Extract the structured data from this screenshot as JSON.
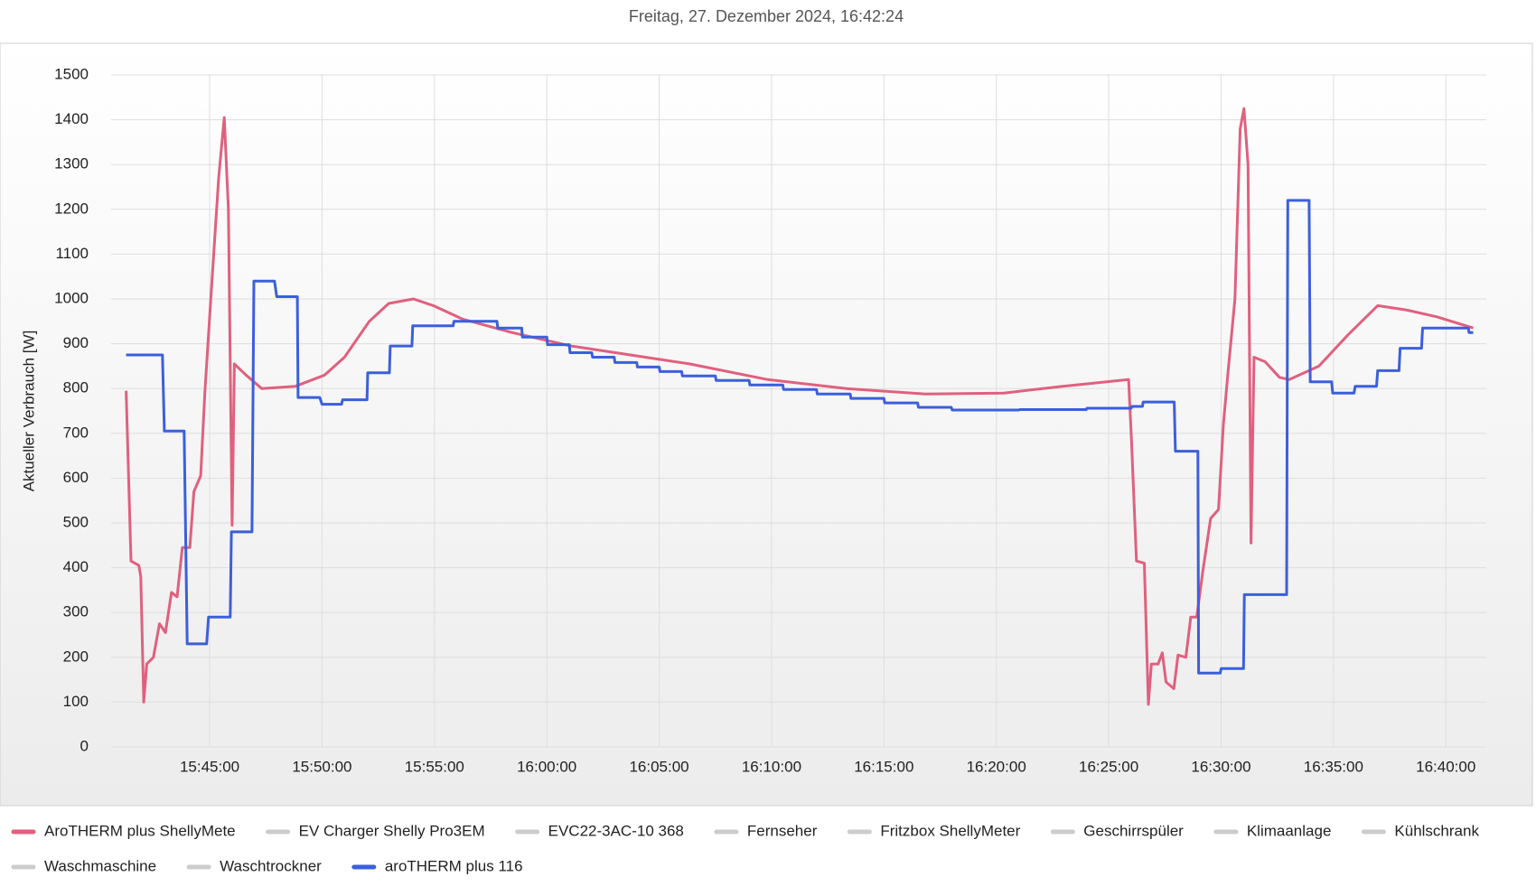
{
  "chart_data": {
    "type": "line",
    "title": "Freitag, 27. Dezember 2024, 16:42:24",
    "y_label": "Aktueller Verbrauch [W]",
    "ylim": [
      0,
      1500
    ],
    "yticks": [
      0,
      100,
      200,
      300,
      400,
      500,
      600,
      700,
      800,
      900,
      1000,
      1100,
      1200,
      1300,
      1400,
      1500
    ],
    "xlim": [
      "15:40:37",
      "16:41:48"
    ],
    "xticks": [
      "15:45:00",
      "15:50:00",
      "15:55:00",
      "16:00:00",
      "16:05:00",
      "16:10:00",
      "16:15:00",
      "16:20:00",
      "16:25:00",
      "16:30:00",
      "16:35:00",
      "16:40:00"
    ],
    "grid": true,
    "series": [
      {
        "name": "AroTHERM plus ShellyMete",
        "color": "#e0607e",
        "x": [
          "15:41:17",
          "15:41:30",
          "15:41:51",
          "15:41:56",
          "15:42:04",
          "15:42:12",
          "15:42:30",
          "15:42:46",
          "15:43:02",
          "15:43:18",
          "15:43:33",
          "15:43:47",
          "15:44:07",
          "15:44:18",
          "15:44:36",
          "15:44:47",
          "15:45:03",
          "15:45:24",
          "15:45:39",
          "15:45:50",
          "15:46:00",
          "15:46:06",
          "15:46:37",
          "15:47:19",
          "15:48:49",
          "15:50:07",
          "15:51:00",
          "15:52:06",
          "15:52:58",
          "15:54:04",
          "15:54:57",
          "15:56:15",
          "15:58:27",
          "16:01:05",
          "16:03:43",
          "16:06:21",
          "16:09:50",
          "16:13:20",
          "16:16:50",
          "16:20:20",
          "16:22:57",
          "16:25:53",
          "16:26:01",
          "16:26:14",
          "16:26:35",
          "16:26:46",
          "16:26:54",
          "16:27:12",
          "16:27:23",
          "16:27:33",
          "16:27:54",
          "16:28:05",
          "16:28:26",
          "16:28:39",
          "16:28:55",
          "16:29:11",
          "16:29:32",
          "16:29:53",
          "16:30:06",
          "16:30:19",
          "16:30:37",
          "16:30:51",
          "16:31:01",
          "16:31:12",
          "16:31:20",
          "16:31:28",
          "16:31:57",
          "16:32:36",
          "16:33:02",
          "16:34:21",
          "16:35:39",
          "16:36:58",
          "16:38:17",
          "16:39:36",
          "16:41:13"
        ],
        "values": [
          795,
          415,
          405,
          380,
          100,
          185,
          200,
          275,
          255,
          345,
          335,
          445,
          445,
          570,
          605,
          790,
          1000,
          1270,
          1405,
          1200,
          495,
          855,
          830,
          800,
          805,
          830,
          870,
          950,
          990,
          1000,
          985,
          955,
          925,
          895,
          875,
          855,
          820,
          800,
          788,
          790,
          805,
          820,
          680,
          415,
          410,
          95,
          185,
          185,
          210,
          145,
          130,
          205,
          200,
          290,
          290,
          390,
          510,
          530,
          720,
          840,
          1000,
          1380,
          1425,
          1300,
          455,
          870,
          860,
          825,
          820,
          850,
          920,
          985,
          975,
          960,
          935
        ]
      },
      {
        "name": "EV Charger Shelly Pro3EM",
        "color": "#cccccc",
        "hidden": true,
        "x": [],
        "values": []
      },
      {
        "name": "EVC22-3AC-10 368",
        "color": "#cccccc",
        "hidden": true,
        "x": [],
        "values": []
      },
      {
        "name": "Fernseher",
        "color": "#cccccc",
        "hidden": true,
        "x": [],
        "values": []
      },
      {
        "name": "Fritzbox ShellyMeter",
        "color": "#cccccc",
        "hidden": true,
        "x": [],
        "values": []
      },
      {
        "name": "Geschirrspüler",
        "color": "#cccccc",
        "hidden": true,
        "x": [],
        "values": []
      },
      {
        "name": "Klimaanlage",
        "color": "#cccccc",
        "hidden": true,
        "x": [],
        "values": []
      },
      {
        "name": "Kühlschrank",
        "color": "#cccccc",
        "hidden": true,
        "x": [],
        "values": []
      },
      {
        "name": "Waschmaschine",
        "color": "#cccccc",
        "hidden": true,
        "x": [],
        "values": []
      },
      {
        "name": "Waschtrockner",
        "color": "#cccccc",
        "hidden": true,
        "x": [],
        "values": []
      },
      {
        "name": "aroTHERM plus 116",
        "color": "#3b5fdc",
        "x": [
          "15:41:17",
          "15:42:54",
          "15:42:59",
          "15:43:52",
          "15:44:00",
          "15:44:52",
          "15:44:57",
          "15:45:55",
          "15:45:58",
          "15:46:53",
          "15:46:58",
          "15:47:53",
          "15:47:59",
          "15:48:54",
          "15:48:56",
          "15:49:54",
          "15:50:00",
          "15:50:52",
          "15:50:55",
          "15:52:00",
          "15:52:02",
          "15:53:00",
          "15:53:02",
          "15:54:00",
          "15:54:02",
          "15:55:50",
          "15:55:52",
          "15:57:47",
          "15:57:49",
          "15:58:53",
          "15:58:55",
          "16:00:00",
          "16:00:02",
          "16:01:00",
          "16:01:02",
          "16:02:00",
          "16:02:02",
          "16:03:00",
          "16:03:02",
          "16:04:00",
          "16:04:02",
          "16:05:00",
          "16:05:02",
          "16:06:00",
          "16:06:02",
          "16:07:30",
          "16:07:32",
          "16:09:00",
          "16:09:02",
          "16:10:30",
          "16:10:32",
          "16:12:00",
          "16:12:02",
          "16:13:30",
          "16:13:32",
          "16:15:00",
          "16:15:02",
          "16:16:30",
          "16:16:32",
          "16:18:00",
          "16:18:02",
          "16:21:00",
          "16:21:02",
          "16:24:00",
          "16:24:02",
          "16:26:00",
          "16:26:02",
          "16:26:30",
          "16:26:32",
          "16:27:55",
          "16:27:58",
          "16:28:58",
          "16:29:00",
          "16:29:58",
          "16:30:00",
          "16:31:00",
          "16:31:02",
          "16:32:55",
          "16:32:58",
          "16:33:55",
          "16:33:58",
          "16:34:55",
          "16:34:58",
          "16:35:55",
          "16:35:58",
          "16:36:55",
          "16:36:58",
          "16:37:55",
          "16:37:58",
          "16:38:55",
          "16:38:58",
          "16:41:00",
          "16:41:02",
          "16:41:13"
        ],
        "values": [
          875,
          875,
          705,
          705,
          230,
          230,
          290,
          290,
          480,
          480,
          1040,
          1040,
          1005,
          1005,
          780,
          780,
          765,
          765,
          775,
          775,
          835,
          835,
          895,
          895,
          940,
          940,
          950,
          950,
          935,
          935,
          915,
          915,
          898,
          898,
          880,
          880,
          870,
          870,
          858,
          858,
          848,
          848,
          838,
          838,
          828,
          828,
          818,
          818,
          808,
          808,
          798,
          798,
          788,
          788,
          778,
          778,
          768,
          768,
          758,
          758,
          752,
          752,
          753,
          753,
          756,
          756,
          760,
          760,
          770,
          770,
          660,
          660,
          165,
          165,
          175,
          175,
          340,
          340,
          1220,
          1220,
          815,
          815,
          790,
          790,
          805,
          805,
          840,
          840,
          890,
          890,
          935,
          935,
          925,
          925
        ]
      }
    ]
  }
}
